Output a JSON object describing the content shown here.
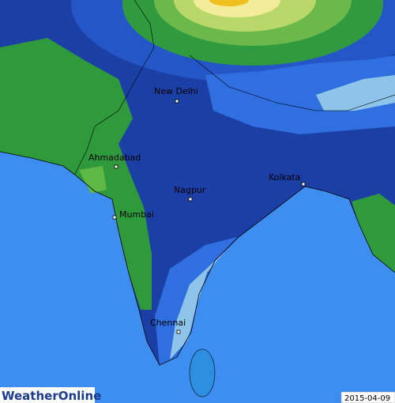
{
  "cities": [
    {
      "label": "New Delhi"
    },
    {
      "label": "Ahmadabad"
    },
    {
      "label": "Nagpur"
    },
    {
      "label": "Kolkata"
    },
    {
      "label": "Mumbai"
    },
    {
      "label": "Chennai"
    }
  ],
  "logo": "WeatherOnline",
  "date": "2015-04-09"
}
